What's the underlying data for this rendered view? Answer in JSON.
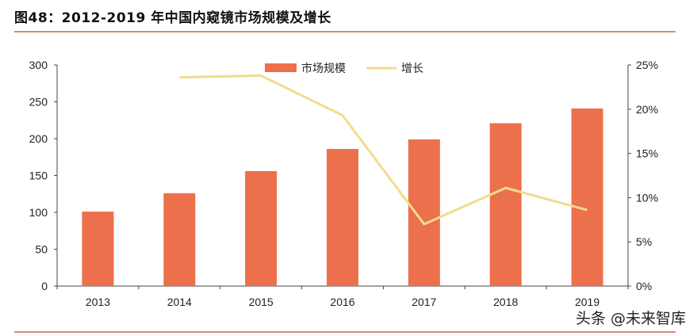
{
  "chart_data": {
    "type": "bar+line",
    "title": "图48：2012-2019 年中国内窥镜市场规模及增长",
    "categories": [
      "2013",
      "2014",
      "2015",
      "2016",
      "2017",
      "2018",
      "2019"
    ],
    "series": [
      {
        "name": "市场规模",
        "type": "bar",
        "axis": "left",
        "color": "#ec704b",
        "values": [
          101,
          126,
          156,
          186,
          199,
          221,
          241
        ]
      },
      {
        "name": "增长",
        "type": "line",
        "axis": "right",
        "color": "#f2dc8c",
        "values": [
          null,
          23.6,
          23.8,
          19.3,
          7.0,
          11.1,
          8.6
        ]
      }
    ],
    "left_axis": {
      "range": [
        0,
        300
      ],
      "ticks": [
        "0",
        "50",
        "100",
        "150",
        "200",
        "250",
        "300"
      ]
    },
    "right_axis": {
      "range": [
        0,
        25
      ],
      "ticks": [
        "0%",
        "5%",
        "10%",
        "15%",
        "20%",
        "25%"
      ]
    },
    "legend_placement": "top-center",
    "grid": false
  },
  "watermark": "头条 @未来智库"
}
